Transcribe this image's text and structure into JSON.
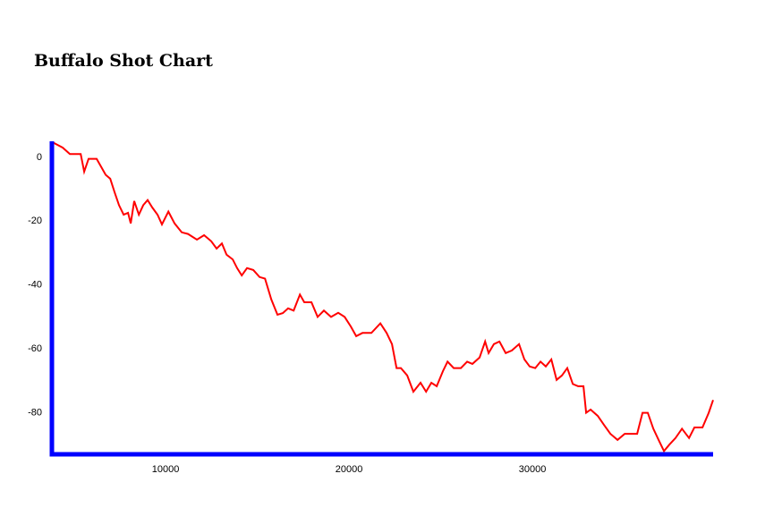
{
  "chart_data": {
    "type": "line",
    "title": "Buffalo Shot Chart",
    "color": "#ff0000",
    "axis_color": "#0000ff",
    "xlim": [
      3800,
      39850
    ],
    "ylim": [
      -93,
      5
    ],
    "xticks": [
      10000,
      20000,
      30000
    ],
    "yticks": [
      0,
      -20,
      -40,
      -60,
      -80
    ],
    "x": [
      3900,
      4390,
      4780,
      5120,
      5370,
      5560,
      5800,
      6240,
      6490,
      6730,
      6980,
      7220,
      7460,
      7710,
      7950,
      8100,
      8290,
      8540,
      8780,
      9020,
      9270,
      9560,
      9800,
      10150,
      10490,
      10880,
      11220,
      11710,
      12100,
      12490,
      12780,
      13070,
      13320,
      13660,
      13900,
      14150,
      14440,
      14780,
      15120,
      15420,
      15760,
      16100,
      16390,
      16680,
      16980,
      17320,
      17560,
      17950,
      18290,
      18630,
      19020,
      19410,
      19760,
      20100,
      20390,
      20730,
      21220,
      21710,
      22050,
      22340,
      22590,
      22830,
      23170,
      23510,
      23900,
      24200,
      24490,
      24780,
      25120,
      25370,
      25710,
      26100,
      26440,
      26730,
      27120,
      27420,
      27610,
      27900,
      28200,
      28540,
      28880,
      29270,
      29560,
      29850,
      30150,
      30440,
      30730,
      31030,
      31320,
      31610,
      31900,
      32200,
      32490,
      32780,
      32930,
      33170,
      33560,
      33900,
      34250,
      34640,
      35030,
      35370,
      35710,
      36000,
      36290,
      36590,
      36880,
      37170,
      37460,
      37800,
      38150,
      38540,
      38830,
      39270,
      39610,
      39850
    ],
    "values": [
      4.5,
      3,
      1,
      1,
      1,
      -4.5,
      -0.5,
      -0.5,
      -3,
      -5.5,
      -6.7,
      -11,
      -15,
      -18,
      -17.4,
      -20.7,
      -13.7,
      -18,
      -15,
      -13.4,
      -15.7,
      -18,
      -21,
      -17,
      -20.7,
      -23.5,
      -24,
      -25.8,
      -24.4,
      -26.3,
      -28.6,
      -27,
      -30.5,
      -32,
      -34.7,
      -37,
      -34.7,
      -35.3,
      -37.5,
      -38,
      -44.5,
      -49.3,
      -48.8,
      -47.3,
      -48,
      -43,
      -45.4,
      -45.4,
      -50,
      -48,
      -50,
      -48.7,
      -50,
      -53,
      -56,
      -55,
      -55,
      -52,
      -55,
      -58.5,
      -66,
      -66,
      -68.3,
      -73.4,
      -70.6,
      -73.4,
      -70.6,
      -71.7,
      -67,
      -64,
      -66,
      -66,
      -64,
      -64.7,
      -62.7,
      -57.7,
      -61.3,
      -58.5,
      -57.7,
      -61.3,
      -60.5,
      -58.5,
      -63.3,
      -65.5,
      -66,
      -64,
      -65.5,
      -63.3,
      -69.7,
      -68.3,
      -66,
      -71,
      -71.7,
      -71.7,
      -80,
      -79,
      -81,
      -83.8,
      -86.6,
      -88.5,
      -86.6,
      -86.6,
      -86.6,
      -80,
      -80,
      -85,
      -88.5,
      -92,
      -90,
      -87.9,
      -85,
      -87.9,
      -84.6,
      -84.6,
      -80,
      -76
    ]
  }
}
